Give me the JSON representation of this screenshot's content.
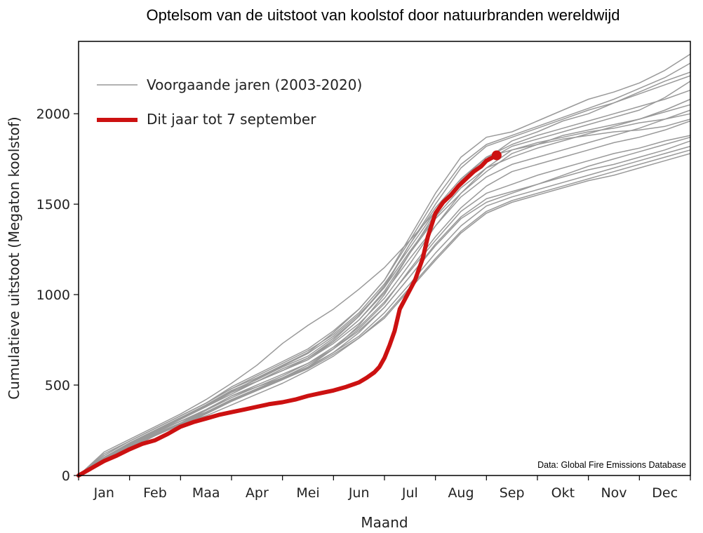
{
  "chart_data": {
    "type": "line",
    "title": "Optelsom van de uitstoot van koolstof door natuurbranden wereldwijd",
    "xlabel": "Maand",
    "ylabel": "Cumulatieve uitstoot (Megaton koolstof)",
    "xlim": [
      0,
      12
    ],
    "ylim": [
      0,
      2400
    ],
    "month_labels": [
      "Jan",
      "Feb",
      "Maa",
      "Apr",
      "Mei",
      "Jun",
      "Jul",
      "Aug",
      "Sep",
      "Okt",
      "Nov",
      "Dec"
    ],
    "yticks": [
      0,
      500,
      1000,
      1500,
      2000
    ],
    "x": [
      0,
      0.5,
      1,
      1.5,
      2,
      2.5,
      3,
      3.5,
      4,
      4.5,
      5,
      5.5,
      6,
      6.5,
      7,
      7.5,
      8,
      8.5,
      9,
      9.5,
      10,
      10.5,
      11,
      11.5,
      12
    ],
    "legend": {
      "position": "upper-left",
      "entries": [
        {
          "label": "Voorgaande jaren (2003-2020)",
          "color": "#999999"
        },
        {
          "label": "Dit jaar tot 7 september",
          "color": "#cc1111"
        }
      ]
    },
    "series_previous": [
      {
        "name": "2003-2020 a",
        "values": [
          0,
          100,
          180,
          250,
          320,
          390,
          470,
          530,
          600,
          660,
          760,
          880,
          1040,
          1280,
          1500,
          1700,
          1820,
          1870,
          1920,
          1970,
          2020,
          2060,
          2110,
          2160,
          2210
        ]
      },
      {
        "name": "2003-2020 b",
        "values": [
          0,
          110,
          190,
          260,
          330,
          400,
          480,
          540,
          610,
          680,
          790,
          920,
          1080,
          1320,
          1560,
          1760,
          1870,
          1900,
          1960,
          2020,
          2080,
          2120,
          2170,
          2240,
          2330
        ]
      },
      {
        "name": "2003-2020 c",
        "values": [
          0,
          80,
          150,
          220,
          290,
          360,
          440,
          490,
          540,
          600,
          700,
          830,
          1000,
          1230,
          1450,
          1620,
          1740,
          1820,
          1860,
          1900,
          1940,
          1980,
          2020,
          2090,
          2180
        ]
      },
      {
        "name": "2003-2020 d",
        "values": [
          0,
          130,
          200,
          270,
          340,
          420,
          510,
          610,
          730,
          830,
          920,
          1030,
          1150,
          1300,
          1460,
          1620,
          1750,
          1850,
          1900,
          1960,
          2000,
          2060,
          2120,
          2180,
          2230
        ]
      },
      {
        "name": "2003-2020 e",
        "values": [
          0,
          90,
          170,
          240,
          310,
          380,
          460,
          520,
          580,
          640,
          740,
          860,
          1020,
          1230,
          1420,
          1560,
          1680,
          1780,
          1830,
          1880,
          1910,
          1940,
          1970,
          2010,
          2050
        ]
      },
      {
        "name": "2003-2020 f",
        "values": [
          0,
          100,
          180,
          250,
          320,
          390,
          470,
          520,
          580,
          640,
          730,
          840,
          980,
          1170,
          1380,
          1560,
          1700,
          1800,
          1840,
          1870,
          1900,
          1920,
          1950,
          1970,
          2000
        ]
      },
      {
        "name": "2003-2020 g",
        "values": [
          0,
          90,
          170,
          240,
          300,
          360,
          430,
          490,
          550,
          620,
          710,
          820,
          960,
          1130,
          1300,
          1460,
          1560,
          1610,
          1660,
          1700,
          1740,
          1780,
          1810,
          1850,
          1880
        ]
      },
      {
        "name": "2003-2020 h",
        "values": [
          0,
          80,
          160,
          230,
          290,
          350,
          420,
          480,
          540,
          610,
          700,
          800,
          930,
          1100,
          1270,
          1420,
          1510,
          1560,
          1610,
          1660,
          1710,
          1750,
          1790,
          1830,
          1870
        ]
      },
      {
        "name": "2003-2020 i",
        "values": [
          0,
          70,
          150,
          220,
          280,
          340,
          410,
          470,
          530,
          600,
          680,
          770,
          900,
          1060,
          1230,
          1380,
          1490,
          1540,
          1580,
          1620,
          1660,
          1700,
          1740,
          1780,
          1820
        ]
      },
      {
        "name": "2003-2020 j",
        "values": [
          0,
          90,
          170,
          240,
          300,
          350,
          410,
          470,
          530,
          590,
          670,
          760,
          880,
          1040,
          1200,
          1350,
          1460,
          1520,
          1560,
          1600,
          1640,
          1680,
          1720,
          1760,
          1800
        ]
      },
      {
        "name": "2003-2020 k",
        "values": [
          0,
          80,
          160,
          230,
          290,
          330,
          390,
          450,
          510,
          580,
          660,
          760,
          870,
          1030,
          1190,
          1340,
          1450,
          1510,
          1550,
          1590,
          1630,
          1660,
          1700,
          1740,
          1780
        ]
      },
      {
        "name": "2003-2020 l",
        "values": [
          0,
          120,
          190,
          260,
          330,
          400,
          490,
          560,
          630,
          700,
          800,
          920,
          1080,
          1300,
          1530,
          1720,
          1830,
          1880,
          1930,
          1980,
          2030,
          2080,
          2140,
          2200,
          2280
        ]
      },
      {
        "name": "2003-2020 m",
        "values": [
          0,
          100,
          180,
          250,
          320,
          380,
          450,
          520,
          590,
          650,
          740,
          860,
          1010,
          1200,
          1380,
          1540,
          1650,
          1720,
          1760,
          1800,
          1840,
          1880,
          1920,
          1970,
          2020
        ]
      },
      {
        "name": "2003-2020 n",
        "values": [
          0,
          90,
          170,
          240,
          310,
          380,
          460,
          520,
          580,
          650,
          750,
          880,
          1050,
          1280,
          1480,
          1640,
          1760,
          1800,
          1830,
          1860,
          1880,
          1900,
          1910,
          1930,
          1970
        ]
      },
      {
        "name": "2003-2020 o",
        "values": [
          0,
          110,
          190,
          260,
          330,
          400,
          480,
          550,
          620,
          690,
          780,
          900,
          1060,
          1260,
          1460,
          1630,
          1760,
          1830,
          1880,
          1920,
          1960,
          2000,
          2040,
          2080,
          2130
        ]
      },
      {
        "name": "2003-2020 p",
        "values": [
          0,
          85,
          165,
          235,
          300,
          365,
          440,
          500,
          560,
          620,
          700,
          810,
          950,
          1140,
          1320,
          1480,
          1600,
          1680,
          1720,
          1760,
          1800,
          1840,
          1870,
          1910,
          1960
        ]
      },
      {
        "name": "2003-2020 q",
        "values": [
          0,
          75,
          155,
          225,
          285,
          345,
          415,
          475,
          535,
          595,
          680,
          790,
          930,
          1100,
          1280,
          1430,
          1530,
          1570,
          1610,
          1650,
          1690,
          1720,
          1760,
          1800,
          1850
        ]
      },
      {
        "name": "2003-2020 r",
        "values": [
          0,
          95,
          175,
          245,
          315,
          385,
          465,
          535,
          605,
          675,
          770,
          890,
          1040,
          1240,
          1430,
          1590,
          1700,
          1760,
          1810,
          1850,
          1890,
          1930,
          1970,
          2020,
          2080
        ]
      }
    ],
    "series_current": {
      "name": "Dit jaar tot 7 september",
      "x": [
        0,
        0.25,
        0.5,
        0.75,
        1,
        1.25,
        1.5,
        1.75,
        2,
        2.25,
        2.5,
        2.75,
        3,
        3.25,
        3.5,
        3.75,
        4,
        4.25,
        4.5,
        4.75,
        5,
        5.25,
        5.5,
        5.65,
        5.8,
        5.9,
        6,
        6.1,
        6.2,
        6.3,
        6.45,
        6.6,
        6.75,
        6.85,
        7,
        7.15,
        7.3,
        7.45,
        7.6,
        7.75,
        7.9,
        8.0,
        8.2
      ],
      "values": [
        0,
        40,
        80,
        110,
        145,
        175,
        195,
        230,
        270,
        295,
        315,
        335,
        350,
        365,
        380,
        395,
        405,
        420,
        440,
        455,
        470,
        490,
        515,
        540,
        570,
        600,
        650,
        720,
        800,
        920,
        1000,
        1080,
        1200,
        1320,
        1450,
        1510,
        1550,
        1600,
        1640,
        1680,
        1710,
        1740,
        1770
      ]
    },
    "source_note": "Data: Global Fire Emissions Database",
    "colors": {
      "previous": "#999999",
      "current": "#cc1111",
      "axis": "#000000"
    }
  }
}
